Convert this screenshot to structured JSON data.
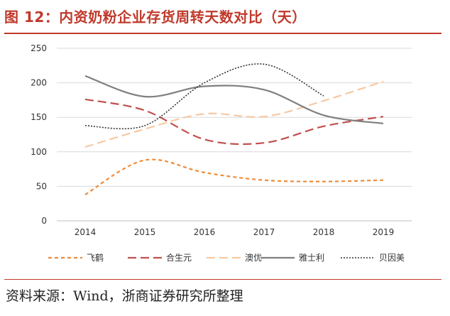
{
  "title": "图 12：内资奶粉企业存货周转天数对比（天）",
  "source": "资料来源：Wind，浙商证券研究所整理",
  "chart_data": {
    "type": "line",
    "categories": [
      "2014",
      "2015",
      "2016",
      "2017",
      "2018",
      "2019"
    ],
    "y_ticks": [
      "0",
      "50",
      "100",
      "150",
      "200",
      "250"
    ],
    "ylim": [
      0,
      250
    ],
    "grid": true,
    "legend_position": "bottom",
    "series": [
      {
        "name": "飞鹤",
        "color": "#ed8c3a",
        "dash": "dashed",
        "values": [
          38,
          88,
          70,
          59,
          57,
          59
        ]
      },
      {
        "name": "合生元",
        "color": "#c0504d",
        "dash": "long-dash",
        "values": [
          176,
          160,
          118,
          113,
          137,
          151
        ]
      },
      {
        "name": "澳优",
        "color": "#f6c9a3",
        "dash": "long-dash",
        "values": [
          107,
          133,
          155,
          151,
          174,
          202
        ]
      },
      {
        "name": "雅士利",
        "color": "#7f7f7f",
        "dash": "solid",
        "values": [
          210,
          180,
          195,
          190,
          153,
          141
        ]
      },
      {
        "name": "贝因美",
        "color": "#333333",
        "dash": "dotted",
        "values": [
          138,
          138,
          200,
          227,
          181,
          null
        ]
      }
    ]
  }
}
